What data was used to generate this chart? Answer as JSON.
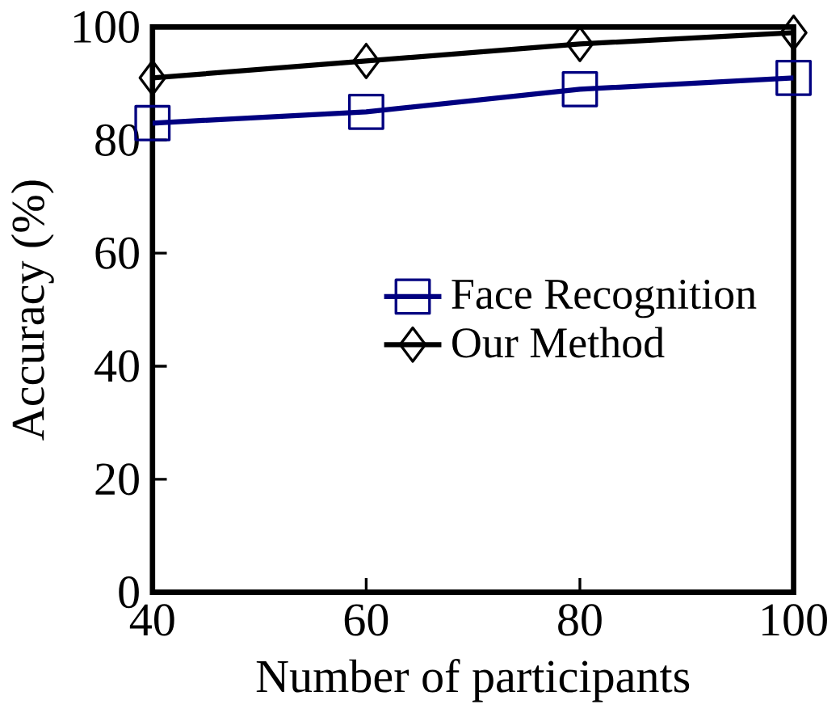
{
  "chart_data": {
    "type": "line",
    "xlabel": "Number of participants",
    "ylabel": "Accuracy (%)",
    "x": [
      40,
      60,
      80,
      100
    ],
    "xlim": [
      40,
      100
    ],
    "xticks": [
      40,
      60,
      80,
      100
    ],
    "ylim": [
      0,
      100
    ],
    "yticks": [
      0,
      20,
      40,
      60,
      80,
      100
    ],
    "legend": "right",
    "grid": false,
    "series": [
      {
        "name": "Face Recognition",
        "color": "#000080",
        "marker": "square",
        "values": [
          83,
          85,
          89,
          91
        ]
      },
      {
        "name": "Our Method",
        "color": "#000000",
        "marker": "diamond",
        "values": [
          91,
          94,
          97,
          99
        ]
      }
    ]
  }
}
